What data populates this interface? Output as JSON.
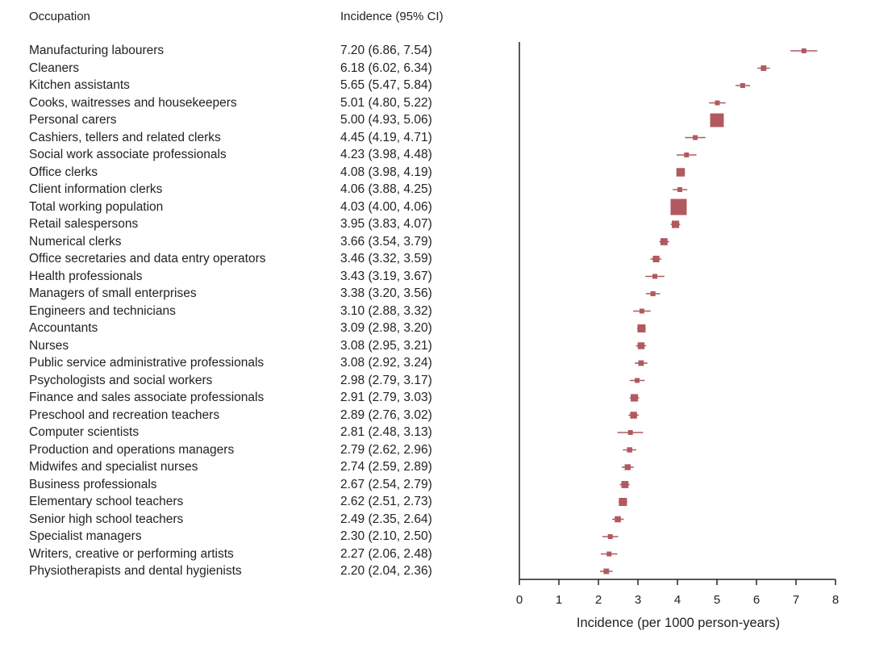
{
  "chart_data": {
    "type": "forest",
    "column_headers": {
      "label": "Occupation",
      "value": "Incidence (95% CI)"
    },
    "xlabel": "Incidence (per 1000 person-years)",
    "xlim": [
      0,
      8
    ],
    "xticks": [
      0,
      1,
      2,
      3,
      4,
      5,
      6,
      7,
      8
    ],
    "marker_color": "#b05a5f",
    "rows": [
      {
        "label": "Manufacturing labourers",
        "text": "7.20 (6.86, 7.54)",
        "est": 7.2,
        "lo": 6.86,
        "hi": 7.54
      },
      {
        "label": "Cleaners",
        "text": "6.18 (6.02, 6.34)",
        "est": 6.18,
        "lo": 6.02,
        "hi": 6.34
      },
      {
        "label": "Kitchen assistants",
        "text": "5.65 (5.47, 5.84)",
        "est": 5.65,
        "lo": 5.47,
        "hi": 5.84
      },
      {
        "label": "Cooks, waitresses and housekeepers",
        "text": "5.01 (4.80, 5.22)",
        "est": 5.01,
        "lo": 4.8,
        "hi": 5.22
      },
      {
        "label": "Personal carers",
        "text": "5.00 (4.93, 5.06)",
        "est": 5.0,
        "lo": 4.93,
        "hi": 5.06
      },
      {
        "label": "Cashiers, tellers and related clerks",
        "text": "4.45 (4.19, 4.71)",
        "est": 4.45,
        "lo": 4.19,
        "hi": 4.71
      },
      {
        "label": "Social work associate professionals",
        "text": "4.23 (3.98, 4.48)",
        "est": 4.23,
        "lo": 3.98,
        "hi": 4.48
      },
      {
        "label": "Office clerks",
        "text": "4.08 (3.98, 4.19)",
        "est": 4.08,
        "lo": 3.98,
        "hi": 4.19
      },
      {
        "label": "Client information clerks",
        "text": "4.06 (3.88, 4.25)",
        "est": 4.06,
        "lo": 3.88,
        "hi": 4.25
      },
      {
        "label": "Total working population",
        "text": "4.03 (4.00, 4.06)",
        "est": 4.03,
        "lo": 4.0,
        "hi": 4.06
      },
      {
        "label": "Retail salespersons",
        "text": "3.95 (3.83, 4.07)",
        "est": 3.95,
        "lo": 3.83,
        "hi": 4.07
      },
      {
        "label": "Numerical clerks",
        "text": "3.66 (3.54, 3.79)",
        "est": 3.66,
        "lo": 3.54,
        "hi": 3.79
      },
      {
        "label": "Office secretaries and data entry operators",
        "text": "3.46 (3.32, 3.59)",
        "est": 3.46,
        "lo": 3.32,
        "hi": 3.59
      },
      {
        "label": "Health professionals",
        "text": "3.43 (3.19, 3.67)",
        "est": 3.43,
        "lo": 3.19,
        "hi": 3.67
      },
      {
        "label": "Managers of small enterprises",
        "text": "3.38 (3.20, 3.56)",
        "est": 3.38,
        "lo": 3.2,
        "hi": 3.56
      },
      {
        "label": "Engineers and technicians",
        "text": "3.10 (2.88, 3.32)",
        "est": 3.1,
        "lo": 2.88,
        "hi": 3.32
      },
      {
        "label": "Accountants",
        "text": "3.09 (2.98, 3.20)",
        "est": 3.09,
        "lo": 2.98,
        "hi": 3.2
      },
      {
        "label": "Nurses",
        "text": "3.08 (2.95, 3.21)",
        "est": 3.08,
        "lo": 2.95,
        "hi": 3.21
      },
      {
        "label": "Public service administrative professionals",
        "text": "3.08 (2.92, 3.24)",
        "est": 3.08,
        "lo": 2.92,
        "hi": 3.24
      },
      {
        "label": "Psychologists and social workers",
        "text": "2.98 (2.79, 3.17)",
        "est": 2.98,
        "lo": 2.79,
        "hi": 3.17
      },
      {
        "label": "Finance and sales  associate professionals",
        "text": "2.91 (2.79, 3.03)",
        "est": 2.91,
        "lo": 2.79,
        "hi": 3.03
      },
      {
        "label": "Preschool and recreation teachers",
        "text": "2.89 (2.76, 3.02)",
        "est": 2.89,
        "lo": 2.76,
        "hi": 3.02
      },
      {
        "label": "Computer scientists",
        "text": "2.81 (2.48, 3.13)",
        "est": 2.81,
        "lo": 2.48,
        "hi": 3.13
      },
      {
        "label": "Production and operations managers",
        "text": "2.79 (2.62, 2.96)",
        "est": 2.79,
        "lo": 2.62,
        "hi": 2.96
      },
      {
        "label": "Midwifes and specialist nurses",
        "text": "2.74 (2.59, 2.89)",
        "est": 2.74,
        "lo": 2.59,
        "hi": 2.89
      },
      {
        "label": "Business professionals",
        "text": "2.67 (2.54, 2.79)",
        "est": 2.67,
        "lo": 2.54,
        "hi": 2.79
      },
      {
        "label": "Elementary school teachers",
        "text": "2.62 (2.51, 2.73)",
        "est": 2.62,
        "lo": 2.51,
        "hi": 2.73
      },
      {
        "label": "Senior high school teachers",
        "text": "2.49 (2.35, 2.64)",
        "est": 2.49,
        "lo": 2.35,
        "hi": 2.64
      },
      {
        "label": "Specialist managers",
        "text": "2.30 (2.10, 2.50)",
        "est": 2.3,
        "lo": 2.1,
        "hi": 2.5
      },
      {
        "label": "Writers, creative or performing artists",
        "text": "2.27 (2.06, 2.48)",
        "est": 2.27,
        "lo": 2.06,
        "hi": 2.48
      },
      {
        "label": "Physiotherapists and dental hygienists",
        "text": "2.20 (2.04, 2.36)",
        "est": 2.2,
        "lo": 2.04,
        "hi": 2.36
      }
    ]
  }
}
